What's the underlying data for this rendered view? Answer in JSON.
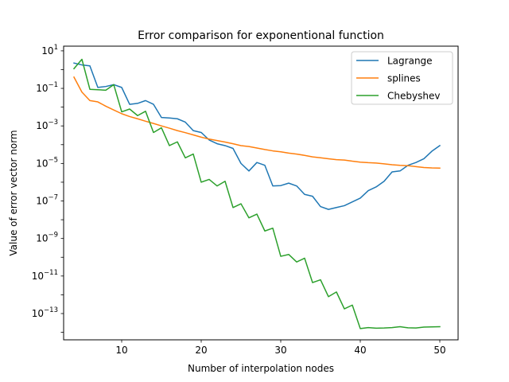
{
  "chart_data": {
    "type": "line",
    "title": "Error comparison for exponentional function",
    "xlabel": "Number of interpolation nodes",
    "ylabel": "Value of error vector norm",
    "xscale": "linear",
    "yscale": "log",
    "xlim": [
      2.7,
      52.3
    ],
    "ylim_exp": [
      -14.4,
      1.25
    ],
    "xticks": [
      10,
      20,
      30,
      40,
      50
    ],
    "yticks": [
      {
        "exp": 1,
        "base": "10",
        "sup": "1"
      },
      {
        "exp": -1,
        "base": "10",
        "sup": "−1"
      },
      {
        "exp": -3,
        "base": "10",
        "sup": "−3"
      },
      {
        "exp": -5,
        "base": "10",
        "sup": "−5"
      },
      {
        "exp": -7,
        "base": "10",
        "sup": "−7"
      },
      {
        "exp": -9,
        "base": "10",
        "sup": "−9"
      },
      {
        "exp": -11,
        "base": "10",
        "sup": "−11"
      },
      {
        "exp": -13,
        "base": "10",
        "sup": "−13"
      }
    ],
    "grid": false,
    "legend_position": "top-right",
    "series": [
      {
        "name": "Lagrange",
        "color": "#1f77b4",
        "x": [
          4,
          5,
          6,
          7,
          8,
          9,
          10,
          11,
          12,
          13,
          14,
          15,
          16,
          17,
          18,
          19,
          20,
          21,
          22,
          23,
          24,
          25,
          26,
          27,
          28,
          29,
          30,
          31,
          32,
          33,
          34,
          35,
          36,
          37,
          38,
          39,
          40,
          41,
          42,
          43,
          44,
          45,
          46,
          47,
          48,
          49,
          50
        ],
        "log10_y": [
          0.35,
          0.25,
          0.2,
          -0.95,
          -0.9,
          -0.8,
          -0.95,
          -1.85,
          -1.8,
          -1.65,
          -1.85,
          -2.55,
          -2.58,
          -2.62,
          -2.8,
          -3.25,
          -3.35,
          -3.75,
          -3.95,
          -4.05,
          -4.2,
          -5.0,
          -5.4,
          -4.95,
          -5.1,
          -6.2,
          -6.18,
          -6.05,
          -6.2,
          -6.65,
          -6.75,
          -7.3,
          -7.45,
          -7.35,
          -7.25,
          -7.05,
          -6.85,
          -6.45,
          -6.25,
          -5.95,
          -5.45,
          -5.4,
          -5.1,
          -4.95,
          -4.75,
          -4.35,
          -4.05
        ]
      },
      {
        "name": "splines",
        "color": "#ff7f0e",
        "x": [
          4,
          5,
          6,
          7,
          8,
          9,
          10,
          11,
          12,
          13,
          14,
          15,
          16,
          17,
          18,
          19,
          20,
          21,
          22,
          23,
          24,
          25,
          26,
          27,
          28,
          29,
          30,
          31,
          32,
          33,
          34,
          35,
          36,
          37,
          38,
          39,
          40,
          41,
          42,
          43,
          44,
          45,
          46,
          47,
          48,
          49,
          50
        ],
        "log10_y": [
          -0.4,
          -1.2,
          -1.65,
          -1.72,
          -1.95,
          -2.15,
          -2.35,
          -2.5,
          -2.62,
          -2.75,
          -2.87,
          -3.0,
          -3.12,
          -3.25,
          -3.36,
          -3.48,
          -3.6,
          -3.7,
          -3.78,
          -3.86,
          -3.95,
          -4.05,
          -4.1,
          -4.18,
          -4.26,
          -4.33,
          -4.38,
          -4.45,
          -4.5,
          -4.57,
          -4.65,
          -4.7,
          -4.75,
          -4.8,
          -4.82,
          -4.88,
          -4.93,
          -4.96,
          -4.98,
          -5.02,
          -5.07,
          -5.1,
          -5.12,
          -5.17,
          -5.22,
          -5.24,
          -5.25
        ]
      },
      {
        "name": "Chebyshev",
        "color": "#2ca02c",
        "x": [
          4,
          5,
          6,
          7,
          8,
          9,
          10,
          11,
          12,
          13,
          14,
          15,
          16,
          17,
          18,
          19,
          20,
          21,
          22,
          23,
          24,
          25,
          26,
          27,
          28,
          29,
          30,
          31,
          32,
          33,
          34,
          35,
          36,
          37,
          38,
          39,
          40,
          41,
          42,
          43,
          44,
          45,
          46,
          47,
          48,
          49,
          50
        ],
        "log10_y": [
          0.05,
          0.55,
          -1.05,
          -1.07,
          -1.1,
          -0.8,
          -2.25,
          -2.1,
          -2.45,
          -2.22,
          -3.35,
          -3.1,
          -4.05,
          -3.85,
          -4.7,
          -4.5,
          -6.0,
          -5.85,
          -6.2,
          -5.95,
          -7.35,
          -7.15,
          -7.9,
          -7.7,
          -8.6,
          -8.45,
          -9.95,
          -9.85,
          -10.25,
          -10.05,
          -11.35,
          -11.2,
          -12.1,
          -11.85,
          -12.75,
          -12.55,
          -13.8,
          -13.75,
          -13.78,
          -13.77,
          -13.75,
          -13.7,
          -13.76,
          -13.77,
          -13.72,
          -13.71,
          -13.7
        ]
      }
    ]
  }
}
